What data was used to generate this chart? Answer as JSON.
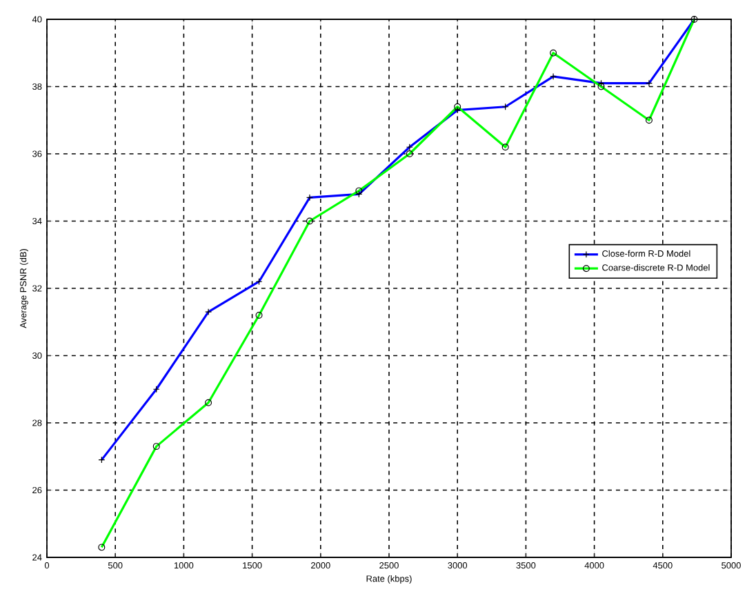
{
  "chart_data": {
    "type": "line",
    "xlabel": "Rate (kbps)",
    "ylabel": "Average PSNR (dB)",
    "xlim": [
      0,
      5000
    ],
    "ylim": [
      24,
      40
    ],
    "xticks": [
      0,
      500,
      1000,
      1500,
      2000,
      2500,
      3000,
      3500,
      4000,
      4500,
      5000
    ],
    "yticks": [
      24,
      26,
      28,
      30,
      32,
      34,
      36,
      38,
      40
    ],
    "grid": true,
    "legend": "right",
    "line_style": "solid",
    "series": [
      {
        "name": "Close-form R-D Model",
        "color": "#0000ff",
        "marker": "cross",
        "x": [
          400,
          800,
          1180,
          1550,
          1920,
          2280,
          2650,
          3000,
          3350,
          3700,
          4050,
          4400,
          4730
        ],
        "values": [
          26.9,
          29.0,
          31.3,
          32.2,
          34.7,
          34.8,
          36.2,
          37.3,
          37.4,
          38.3,
          38.1,
          38.1,
          40.0
        ]
      },
      {
        "name": "Coarse-discrete R-D Model",
        "color": "#00ff00",
        "marker": "circle",
        "x": [
          400,
          800,
          1180,
          1550,
          1920,
          2280,
          2650,
          3000,
          3350,
          3700,
          4050,
          4400,
          4730
        ],
        "values": [
          24.3,
          27.3,
          28.6,
          31.2,
          34.0,
          34.9,
          36.0,
          37.4,
          36.2,
          39.0,
          38.0,
          37.0,
          40.0
        ]
      }
    ]
  }
}
